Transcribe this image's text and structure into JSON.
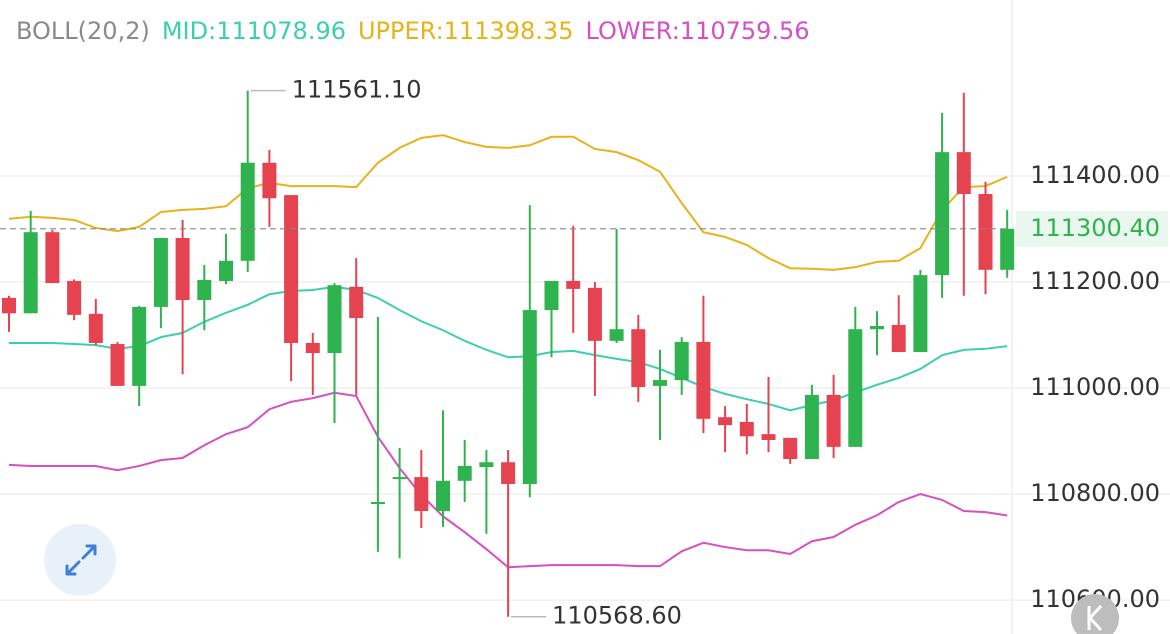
{
  "chart_data": {
    "type": "candlestick",
    "indicator": "BOLL(20,2)",
    "up_color": "#2fb34e",
    "down_color": "#e5434f",
    "open": [
      111170,
      111141,
      111294,
      111202,
      111140,
      111083,
      111004,
      111153,
      111283,
      111166,
      111202,
      111240,
      111425,
      111364,
      111085,
      111066,
      111191,
      110785,
      110832,
      110832,
      110768,
      110825,
      110851,
      110860,
      110819,
      111147,
      111202,
      111189,
      111089,
      111111,
      111004,
      111015,
      111087,
      110945,
      110936,
      110913,
      110906,
      110866,
      110987,
      110889,
      111111,
      111119,
      111068,
      111213,
      111445,
      111366,
      111223
    ],
    "high": [
      111174,
      111334,
      111298,
      111205,
      111168,
      111087,
      111155,
      111283,
      111317,
      111232,
      111291,
      111561.1,
      111449,
      111364,
      111104,
      111198,
      111245,
      111134,
      110887,
      110883,
      110958,
      110902,
      110883,
      110883,
      111345,
      111202,
      111306,
      111200,
      111300,
      111138,
      111072,
      111096,
      111174,
      110966,
      110970,
      111021,
      110906,
      111006,
      111025,
      111153,
      111145,
      111175,
      111223,
      111519,
      111557,
      111389,
      111336
    ],
    "low": [
      111106,
      111141,
      111198,
      111128,
      111081,
      111004,
      110966,
      111113,
      111026,
      111109,
      111196,
      111219,
      111304,
      111013,
      110987,
      110934,
      110987,
      110691,
      110679,
      110736,
      110738,
      110785,
      110725,
      110568.6,
      110794,
      111058,
      111104,
      110985,
      111085,
      110974,
      110902,
      110987,
      110915,
      110879,
      110875,
      110879,
      110857,
      110868,
      110868,
      110889,
      111062,
      111068,
      111068,
      111170,
      111174,
      111177,
      111208
    ],
    "close": [
      111141,
      111294,
      111198,
      111138,
      111085,
      111004,
      111153,
      111283,
      111166,
      111204,
      111240,
      111425,
      111358,
      111085,
      111066,
      111194,
      111132,
      110785,
      110832,
      110768,
      110825,
      110853,
      110860,
      110819,
      111147,
      111202,
      111187,
      111089,
      111111,
      111002,
      111015,
      111087,
      110942,
      110930,
      110909,
      110902,
      110866,
      110987,
      110889,
      111111,
      111117,
      111068,
      111213,
      111445,
      111366,
      111223,
      111300.4
    ],
    "bands": [
      {
        "name": "MID:111078.96",
        "color": "#3ccfae",
        "values": [
          111085,
          111085,
          111085,
          111083,
          111081,
          111074,
          111079,
          111096,
          111104,
          111125,
          111142,
          111157,
          111177,
          111183,
          111185,
          111191,
          111185,
          111170,
          111147,
          111126,
          111109,
          111089,
          111072,
          111058,
          111060,
          111068,
          111070,
          111062,
          111055,
          111049,
          111036,
          111019,
          111002,
          110989,
          110979,
          110970,
          110958,
          110968,
          110977,
          110992,
          111006,
          111019,
          111036,
          111062,
          111072,
          111074,
          111078.96
        ]
      },
      {
        "name": "UPPER:111398.35",
        "color": "#e8b21a",
        "values": [
          111319,
          111323,
          111321,
          111317,
          111302,
          111296,
          111304,
          111332,
          111336,
          111338,
          111343,
          111377,
          111387,
          111381,
          111381,
          111381,
          111379,
          111425,
          111453,
          111472,
          111477,
          111464,
          111455,
          111453,
          111458,
          111474,
          111474,
          111451,
          111445,
          111430,
          111408,
          111349,
          111294,
          111285,
          111270,
          111245,
          111226,
          111225,
          111223,
          111228,
          111238,
          111240,
          111264,
          111336,
          111379,
          111381,
          111398.35
        ]
      },
      {
        "name": "LOWER:110759.56",
        "color": "#d64fc3",
        "values": [
          110855,
          110853,
          110853,
          110853,
          110853,
          110845,
          110853,
          110864,
          110868,
          110892,
          110913,
          110926,
          110960,
          110974,
          110981,
          110991,
          110985,
          110908,
          110849,
          110798,
          110758,
          110728,
          110696,
          110662,
          110664,
          110666,
          110666,
          110666,
          110666,
          110664,
          110664,
          110692,
          110708,
          110700,
          110694,
          110694,
          110687,
          110711,
          110719,
          110742,
          110760,
          110785,
          110800,
          110789,
          110768,
          110766,
          110759.56
        ]
      }
    ],
    "current_price": {
      "value": 111300.4,
      "label": "111300.40"
    },
    "max_annotation": {
      "value": 111561.1,
      "label": "111561.10"
    },
    "min_annotation": {
      "value": 110568.6,
      "label": "110568.60"
    },
    "ylim": [
      110536,
      111732
    ],
    "yticks": [
      {
        "value": 110600,
        "label": "110600.00"
      },
      {
        "value": 110800,
        "label": "110800.00"
      },
      {
        "value": 111000,
        "label": "111000.00"
      },
      {
        "value": 111200,
        "label": "111200.00"
      },
      {
        "value": 111400,
        "label": "111400.00"
      }
    ],
    "grid": true
  }
}
